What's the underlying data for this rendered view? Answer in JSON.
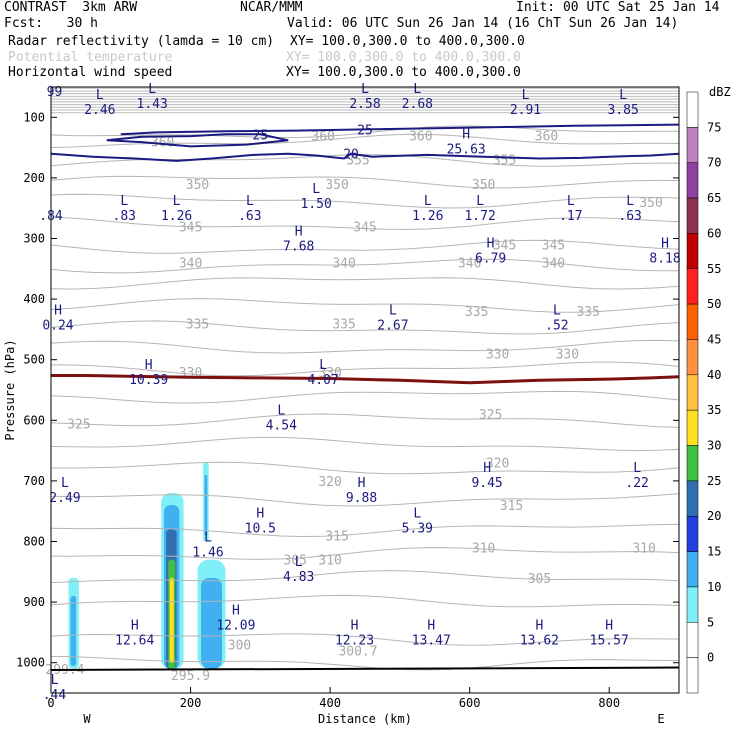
{
  "header": {
    "title": "CONTRAST  3km ARW",
    "fcst": "Fcst:   30 h",
    "org": "NCAR/MMM",
    "init": "Init: 00 UTC Sat 25 Jan 14",
    "valid": "Valid: 06 UTC Sun 26 Jan 14 (16 ChT Sun 26 Jan 14)",
    "fields": [
      {
        "name": "Radar reflectivity (lamda = 10 cm)",
        "xy": "XY= 100.0,300.0 to 400.0,300.0",
        "faint": false
      },
      {
        "name": "Potential temperature",
        "xy": "XY= 100.0,300.0 to 400.0,300.0",
        "faint": true
      },
      {
        "name": "Horizontal wind speed",
        "xy": "XY= 100.0,300.0 to 400.0,300.0",
        "faint": false
      }
    ]
  },
  "chart_data": {
    "type": "cross-section contour",
    "xlabel": "Distance (km)",
    "ylabel": "Pressure (hPa)",
    "xlim": [
      0,
      900
    ],
    "ylim": [
      1050,
      50
    ],
    "x_ticks": [
      0,
      200,
      400,
      600,
      800
    ],
    "y_ticks": [
      100,
      200,
      300,
      400,
      500,
      600,
      700,
      800,
      900,
      1000
    ],
    "end_labels": {
      "left": "W",
      "right": "E"
    },
    "colorbar": {
      "unit": "dBZ",
      "levels": [
        75,
        70,
        65,
        60,
        55,
        50,
        45,
        40,
        35,
        30,
        25,
        20,
        15,
        10,
        5,
        0
      ],
      "colors": [
        "#ffffff",
        "#c080c0",
        "#9040a0",
        "#903050",
        "#c00000",
        "#ff2020",
        "#ff6000",
        "#ff9040",
        "#ffc040",
        "#ffe020",
        "#40c040",
        "#3070b0",
        "#2040e0",
        "#40b0f0",
        "#80f0f8",
        "#ffffff",
        "#ffffff"
      ]
    },
    "theta_labels": [
      {
        "x": 390,
        "p": 130,
        "text": "360"
      },
      {
        "x": 530,
        "p": 130,
        "text": "360"
      },
      {
        "x": 160,
        "p": 140,
        "text": "360"
      },
      {
        "x": 710,
        "p": 130,
        "text": "360"
      },
      {
        "x": 440,
        "p": 170,
        "text": "355"
      },
      {
        "x": 650,
        "p": 170,
        "text": "355"
      },
      {
        "x": 210,
        "p": 210,
        "text": "350"
      },
      {
        "x": 410,
        "p": 210,
        "text": "350"
      },
      {
        "x": 620,
        "p": 210,
        "text": "350"
      },
      {
        "x": 860,
        "p": 240,
        "text": "350"
      },
      {
        "x": 200,
        "p": 280,
        "text": "345"
      },
      {
        "x": 450,
        "p": 280,
        "text": "345"
      },
      {
        "x": 650,
        "p": 310,
        "text": "345"
      },
      {
        "x": 720,
        "p": 310,
        "text": "345"
      },
      {
        "x": 200,
        "p": 340,
        "text": "340"
      },
      {
        "x": 420,
        "p": 340,
        "text": "340"
      },
      {
        "x": 600,
        "p": 340,
        "text": "340"
      },
      {
        "x": 720,
        "p": 340,
        "text": "340"
      },
      {
        "x": 210,
        "p": 440,
        "text": "335"
      },
      {
        "x": 420,
        "p": 440,
        "text": "335"
      },
      {
        "x": 610,
        "p": 420,
        "text": "335"
      },
      {
        "x": 770,
        "p": 420,
        "text": "335"
      },
      {
        "x": 200,
        "p": 520,
        "text": "330"
      },
      {
        "x": 400,
        "p": 520,
        "text": "330"
      },
      {
        "x": 640,
        "p": 490,
        "text": "330"
      },
      {
        "x": 740,
        "p": 490,
        "text": "330"
      },
      {
        "x": 40,
        "p": 605,
        "text": "325"
      },
      {
        "x": 630,
        "p": 590,
        "text": "325"
      },
      {
        "x": 400,
        "p": 700,
        "text": "320"
      },
      {
        "x": 640,
        "p": 670,
        "text": "320"
      },
      {
        "x": 410,
        "p": 790,
        "text": "315"
      },
      {
        "x": 660,
        "p": 740,
        "text": "315"
      },
      {
        "x": 400,
        "p": 830,
        "text": "310"
      },
      {
        "x": 620,
        "p": 810,
        "text": "310"
      },
      {
        "x": 850,
        "p": 810,
        "text": "310"
      },
      {
        "x": 350,
        "p": 830,
        "text": "305"
      },
      {
        "x": 700,
        "p": 860,
        "text": "305"
      },
      {
        "x": 270,
        "p": 970,
        "text": "300"
      },
      {
        "x": 440,
        "p": 980,
        "text": "300.7"
      },
      {
        "x": 200,
        "p": 1020,
        "text": "295.9"
      },
      {
        "x": 20,
        "p": 1010,
        "text": "299.4"
      }
    ],
    "wind_contours": [
      {
        "label": "25",
        "points": [
          [
            100,
            0,
            128
          ],
          [
            150,
            0,
            125
          ],
          [
            250,
            0,
            123
          ],
          [
            350,
            0,
            122
          ],
          [
            450,
            0,
            120
          ],
          [
            550,
            0,
            118
          ],
          [
            650,
            0,
            116
          ],
          [
            750,
            0,
            114
          ],
          [
            900,
            0,
            112
          ]
        ]
      },
      {
        "label": "25",
        "points": [
          [
            80,
            0,
            138
          ],
          [
            130,
            0,
            141
          ],
          [
            200,
            0,
            148
          ],
          [
            280,
            0,
            145
          ],
          [
            340,
            0,
            138
          ],
          [
            300,
            0,
            128
          ],
          [
            250,
            0,
            128
          ],
          [
            200,
            0,
            131
          ],
          [
            130,
            0,
            132
          ],
          [
            80,
            0,
            138
          ]
        ]
      },
      {
        "label": "20",
        "points": [
          [
            0,
            0,
            160
          ],
          [
            60,
            0,
            165
          ],
          [
            120,
            0,
            168
          ],
          [
            180,
            0,
            172
          ],
          [
            230,
            0,
            168
          ],
          [
            290,
            0,
            162
          ],
          [
            340,
            0,
            160
          ],
          [
            380,
            0,
            163
          ],
          [
            420,
            0,
            168
          ],
          [
            430,
            0,
            160
          ],
          [
            460,
            0,
            165
          ],
          [
            540,
            0,
            162
          ],
          [
            620,
            0,
            165
          ],
          [
            700,
            0,
            168
          ],
          [
            760,
            0,
            167
          ],
          [
            800,
            0,
            165
          ],
          [
            860,
            0,
            163
          ],
          [
            900,
            0,
            160
          ]
        ]
      }
    ],
    "zero_line_points": [
      [
        0,
        526
      ],
      [
        50,
        526
      ],
      [
        100,
        527
      ],
      [
        200,
        529
      ],
      [
        300,
        530
      ],
      [
        400,
        531
      ],
      [
        500,
        534
      ],
      [
        550,
        536
      ],
      [
        600,
        538
      ],
      [
        650,
        536
      ],
      [
        700,
        534
      ],
      [
        800,
        532
      ],
      [
        860,
        530
      ],
      [
        900,
        528
      ]
    ],
    "extrema": [
      {
        "x": 5,
        "p": 50,
        "type": "",
        "value": "99"
      },
      {
        "x": 70,
        "p": 80,
        "type": "L",
        "value": "2.46"
      },
      {
        "x": 145,
        "p": 70,
        "type": "L",
        "value": "1.43"
      },
      {
        "x": 450,
        "p": 70,
        "type": "L",
        "value": "2.58"
      },
      {
        "x": 525,
        "p": 70,
        "type": "L",
        "value": "2.68"
      },
      {
        "x": 680,
        "p": 80,
        "type": "L",
        "value": "2.91"
      },
      {
        "x": 820,
        "p": 80,
        "type": "L",
        "value": "3.85"
      },
      {
        "x": 595,
        "p": 145,
        "type": "H",
        "value": "25.63"
      },
      {
        "x": 0,
        "p": 255,
        "type": "",
        "value": ".84"
      },
      {
        "x": 105,
        "p": 255,
        "type": "L",
        "value": ".83"
      },
      {
        "x": 180,
        "p": 255,
        "type": "L",
        "value": "1.26"
      },
      {
        "x": 285,
        "p": 255,
        "type": "L",
        "value": ".63"
      },
      {
        "x": 380,
        "p": 235,
        "type": "L",
        "value": "1.50"
      },
      {
        "x": 540,
        "p": 255,
        "type": "L",
        "value": "1.26"
      },
      {
        "x": 615,
        "p": 255,
        "type": "L",
        "value": "1.72"
      },
      {
        "x": 745,
        "p": 255,
        "type": "L",
        "value": ".17"
      },
      {
        "x": 830,
        "p": 255,
        "type": "L",
        "value": ".63"
      },
      {
        "x": 355,
        "p": 305,
        "type": "H",
        "value": "7.68"
      },
      {
        "x": 630,
        "p": 325,
        "type": "H",
        "value": "6.79"
      },
      {
        "x": 880,
        "p": 325,
        "type": "H",
        "value": "8.18"
      },
      {
        "x": 10,
        "p": 435,
        "type": "H",
        "value": "0.24"
      },
      {
        "x": 490,
        "p": 435,
        "type": "L",
        "value": "2.67"
      },
      {
        "x": 725,
        "p": 435,
        "type": "L",
        "value": ".52"
      },
      {
        "x": 140,
        "p": 525,
        "type": "H",
        "value": "10.39"
      },
      {
        "x": 390,
        "p": 525,
        "type": "L",
        "value": "4.07"
      },
      {
        "x": 330,
        "p": 600,
        "type": "L",
        "value": "4.54"
      },
      {
        "x": 625,
        "p": 695,
        "type": "H",
        "value": "9.45"
      },
      {
        "x": 840,
        "p": 695,
        "type": "L",
        "value": ".22"
      },
      {
        "x": 20,
        "p": 720,
        "type": "L",
        "value": "2.49"
      },
      {
        "x": 445,
        "p": 720,
        "type": "H",
        "value": "9.88"
      },
      {
        "x": 300,
        "p": 770,
        "type": "H",
        "value": "10.5"
      },
      {
        "x": 525,
        "p": 770,
        "type": "L",
        "value": "5.39"
      },
      {
        "x": 225,
        "p": 810,
        "type": "L",
        "value": "1.46"
      },
      {
        "x": 355,
        "p": 850,
        "type": "L",
        "value": "4.83"
      },
      {
        "x": 265,
        "p": 930,
        "type": "H",
        "value": "12.09"
      },
      {
        "x": 120,
        "p": 955,
        "type": "H",
        "value": "12.64"
      },
      {
        "x": 435,
        "p": 955,
        "type": "H",
        "value": "12.23"
      },
      {
        "x": 545,
        "p": 955,
        "type": "H",
        "value": "13.47"
      },
      {
        "x": 700,
        "p": 955,
        "type": "H",
        "value": "13.62"
      },
      {
        "x": 800,
        "p": 955,
        "type": "H",
        "value": "15.57"
      },
      {
        "x": 5,
        "p": 1045,
        "type": "L",
        "value": ".44"
      }
    ],
    "reflectivity_cells": [
      {
        "x0": 25,
        "x1": 40,
        "ptop": 860,
        "pbot": 1010,
        "dbz": 5
      },
      {
        "x0": 28,
        "x1": 36,
        "ptop": 890,
        "pbot": 1005,
        "dbz": 10
      },
      {
        "x0": 158,
        "x1": 190,
        "ptop": 720,
        "pbot": 1010,
        "dbz": 5
      },
      {
        "x0": 162,
        "x1": 184,
        "ptop": 740,
        "pbot": 1010,
        "dbz": 10
      },
      {
        "x0": 165,
        "x1": 180,
        "ptop": 780,
        "pbot": 1010,
        "dbz": 20
      },
      {
        "x0": 168,
        "x1": 178,
        "ptop": 830,
        "pbot": 1010,
        "dbz": 25
      },
      {
        "x0": 170,
        "x1": 176,
        "ptop": 860,
        "pbot": 1000,
        "dbz": 30
      },
      {
        "x0": 210,
        "x1": 250,
        "ptop": 830,
        "pbot": 1010,
        "dbz": 5
      },
      {
        "x0": 215,
        "x1": 245,
        "ptop": 860,
        "pbot": 1010,
        "dbz": 10
      },
      {
        "x0": 218,
        "x1": 226,
        "ptop": 670,
        "pbot": 800,
        "dbz": 5
      },
      {
        "x0": 220,
        "x1": 224,
        "ptop": 690,
        "pbot": 790,
        "dbz": 10
      }
    ]
  }
}
